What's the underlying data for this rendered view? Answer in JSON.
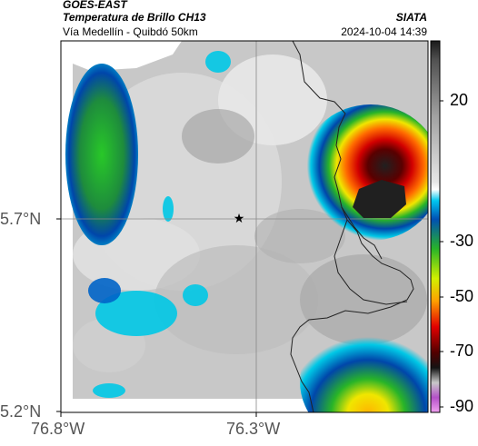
{
  "header": {
    "satellite": "GOES-EAST",
    "product": "Temperatura de Brillo CH13",
    "route": "Vía Medellín - Quibdó 50km",
    "organization": "SIATA",
    "datetime": "2024-10-04 14:39"
  },
  "map": {
    "lat_ticks": [
      "5.7°N",
      "5.2°N"
    ],
    "lon_ticks": [
      "76.8°W",
      "76.3°W"
    ],
    "marker": "star-marker"
  },
  "colorbar": {
    "ticks": [
      "20",
      "-30",
      "-50",
      "-70",
      "-90"
    ],
    "colors": {
      "warm": "#f0f0f0",
      "cyan": "#00c8e6",
      "blue": "#0050b4",
      "green": "#28b428",
      "yellow": "#f0f000",
      "orange": "#ff7800",
      "red": "#dc0000",
      "darkred": "#640000",
      "black": "#101010",
      "magenta": "#b450b4"
    }
  }
}
